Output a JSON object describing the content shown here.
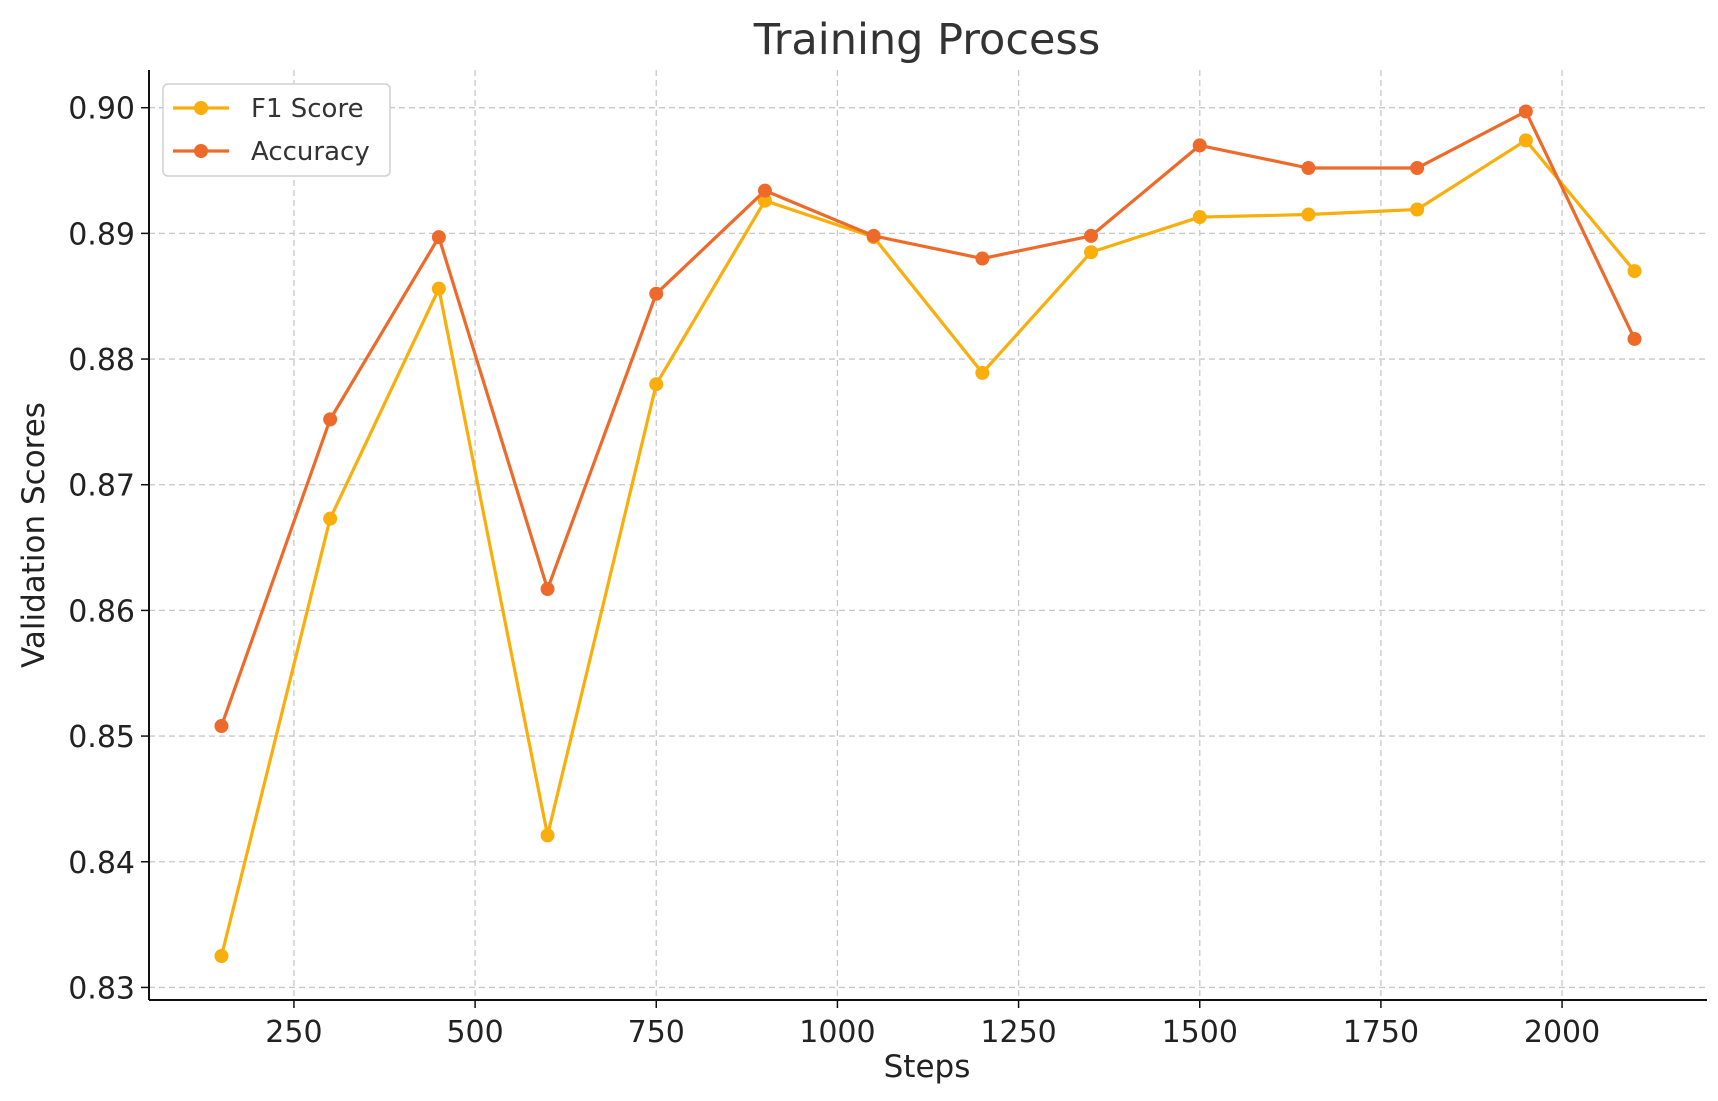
{
  "chart_data": {
    "type": "line",
    "title": "Training Process",
    "xlabel": "Steps",
    "ylabel": "Validation Scores",
    "x": [
      150,
      300,
      450,
      600,
      750,
      900,
      1050,
      1200,
      1350,
      1500,
      1650,
      1800,
      1950,
      2100
    ],
    "xlim": [
      50,
      2200
    ],
    "ylim": [
      0.829,
      0.903
    ],
    "xticks": [
      250,
      500,
      750,
      1000,
      1250,
      1500,
      1750,
      2000
    ],
    "xtick_labels": [
      "250",
      "500",
      "750",
      "1000",
      "1250",
      "1500",
      "1750",
      "2000"
    ],
    "yticks": [
      0.83,
      0.84,
      0.85,
      0.86,
      0.87,
      0.88,
      0.89,
      0.9
    ],
    "ytick_labels": [
      "0.83",
      "0.84",
      "0.85",
      "0.86",
      "0.87",
      "0.88",
      "0.89",
      "0.90"
    ],
    "grid": true,
    "legend_position": "top-left",
    "series": [
      {
        "name": "F1 Score",
        "color": "#F9AE0B",
        "values": [
          0.8325,
          0.8673,
          0.8856,
          0.8421,
          0.878,
          0.8926,
          0.8897,
          0.8789,
          0.8885,
          0.8913,
          0.8915,
          0.8919,
          0.8974,
          0.887
        ]
      },
      {
        "name": "Accuracy",
        "color": "#EE6A2A",
        "values": [
          0.8508,
          0.8752,
          0.8897,
          0.8617,
          0.8852,
          0.8934,
          0.8898,
          0.888,
          0.8898,
          0.897,
          0.8952,
          0.8952,
          0.8997,
          0.8816
        ]
      }
    ]
  }
}
